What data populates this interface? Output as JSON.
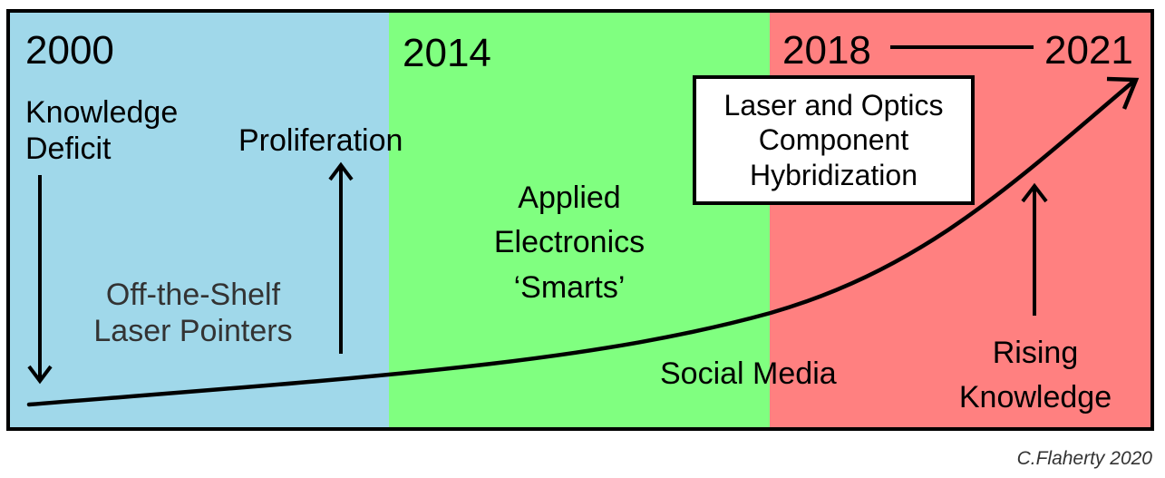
{
  "colors": {
    "era_2000": "#a0d8ea",
    "era_2014": "#80ff80",
    "era_2018": "#ff8080",
    "line": "#000000",
    "text_secondary": "#333333"
  },
  "eras": [
    {
      "year": "2000"
    },
    {
      "year": "2014"
    },
    {
      "year": "2018",
      "end_year": "2021"
    }
  ],
  "labels": {
    "knowledge_deficit": [
      "Knowledge",
      "Deficit"
    ],
    "proliferation": "Proliferation",
    "laser_pointers": [
      "Off-the-Shelf",
      "Laser Pointers"
    ],
    "applied_electronics": [
      "Applied",
      "Electronics",
      "‘Smarts’"
    ],
    "social_media": "Social Media",
    "hybridization": [
      "Laser and Optics",
      "Component",
      "Hybridization"
    ],
    "rising_knowledge": [
      "Rising",
      "Knowledge"
    ]
  },
  "credit": "C.Flaherty 2020"
}
